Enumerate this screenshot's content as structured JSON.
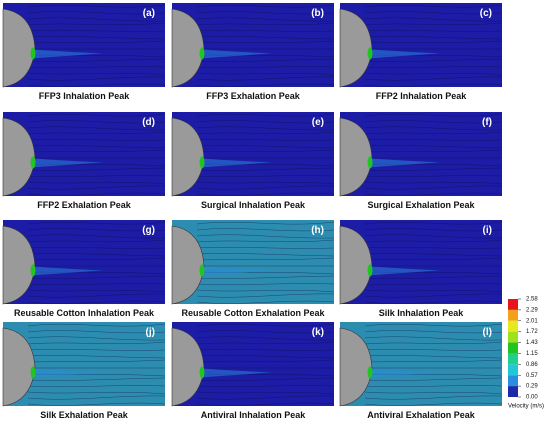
{
  "panels": [
    {
      "letter": "(a)",
      "caption": "FFP3 Inhalation Peak",
      "background": "#1c1ca6"
    },
    {
      "letter": "(b)",
      "caption": "FFP3 Exhalation Peak",
      "background": "#1c1ca6"
    },
    {
      "letter": "(c)",
      "caption": "FFP2 Inhalation Peak",
      "background": "#1c1ca6"
    },
    {
      "letter": "(d)",
      "caption": "FFP2 Exhalation Peak",
      "background": "#1c1ca6"
    },
    {
      "letter": "(e)",
      "caption": "Surgical Inhalation Peak",
      "background": "#1c1ca6"
    },
    {
      "letter": "(f)",
      "caption": "Surgical Exhalation Peak",
      "background": "#1c1ca6"
    },
    {
      "letter": "(g)",
      "caption": "Reusable Cotton Inhalation Peak",
      "background": "#1c1ca6"
    },
    {
      "letter": "(h)",
      "caption": "Reusable Cotton Exhalation Peak",
      "background": "#2c8db0"
    },
    {
      "letter": "(i)",
      "caption": "Silk Inhalation Peak",
      "background": "#1c1ca6"
    },
    {
      "letter": "(j)",
      "caption": "Silk Exhalation Peak",
      "background": "#2c8db0"
    },
    {
      "letter": "(k)",
      "caption": "Antiviral Inhalation Peak",
      "background": "#1c1ca6"
    },
    {
      "letter": "(l)",
      "caption": "Antiviral Exhalation Peak",
      "background": "#2c8db0"
    }
  ],
  "colorbar": {
    "label": "Velocity (m/s)",
    "ticks": [
      {
        "value": 2.58,
        "label": "2.58"
      },
      {
        "value": 2.29,
        "label": "2.29"
      },
      {
        "value": 2.01,
        "label": "2.01"
      },
      {
        "value": 1.72,
        "label": "1.72"
      },
      {
        "value": 1.43,
        "label": "1.43"
      },
      {
        "value": 1.15,
        "label": "1.15"
      },
      {
        "value": 0.86,
        "label": "0.86"
      },
      {
        "value": 0.57,
        "label": "0.57"
      },
      {
        "value": 0.29,
        "label": "0.29"
      },
      {
        "value": 0,
        "label": "0.00"
      }
    ],
    "colors": [
      "#e8141c",
      "#f2a21a",
      "#e8e81e",
      "#9ee21e",
      "#22c422",
      "#22d08a",
      "#22c8d8",
      "#2a8ee0",
      "#1c2aa8"
    ]
  }
}
